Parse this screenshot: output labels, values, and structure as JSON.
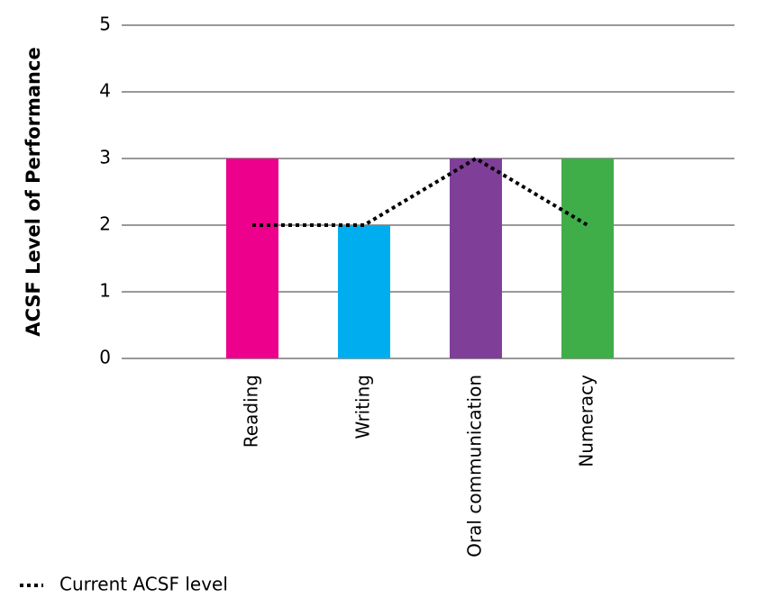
{
  "chart_data": {
    "type": "bar",
    "ylabel": "ACSF Level of Performance",
    "categories": [
      "Reading",
      "Writing",
      "Oral communication",
      "Numeracy"
    ],
    "series": [
      {
        "type": "bar",
        "colors": [
          "#ec008c",
          "#00aeef",
          "#7f3f98",
          "#3fae49"
        ],
        "values": [
          3,
          2,
          3,
          3
        ]
      },
      {
        "type": "line",
        "name": "Current ACSF level",
        "color": "#000000",
        "dashed": true,
        "values": [
          2,
          2,
          3,
          2
        ]
      }
    ],
    "ylim": [
      0,
      5
    ],
    "yticks": [
      0,
      1,
      2,
      3,
      4,
      5
    ],
    "grid": true,
    "legend": "bottom-left"
  }
}
